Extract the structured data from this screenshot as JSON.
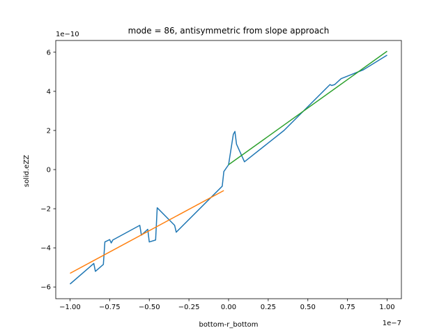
{
  "chart_data": {
    "type": "line",
    "title": "mode = 86, antisymmetric from slope approach",
    "xlabel": "bottom-r_bottom",
    "ylabel": "solid.eZZ",
    "x_offset_label": "1e−7",
    "y_offset_label": "1e−10",
    "x_scale": 1e-07,
    "y_scale": 1e-10,
    "xlim": [
      -1.09,
      1.09
    ],
    "ylim": [
      -6.6,
      6.6
    ],
    "x_ticks": [
      -1.0,
      -0.75,
      -0.5,
      -0.25,
      0.0,
      0.25,
      0.5,
      0.75,
      1.0
    ],
    "x_tick_labels": [
      "−1.00",
      "−0.75",
      "−0.50",
      "−0.25",
      "0.00",
      "0.25",
      "0.50",
      "0.75",
      "1.00"
    ],
    "y_ticks": [
      -6,
      -4,
      -2,
      0,
      2,
      4,
      6
    ],
    "y_tick_labels": [
      "−6",
      "−4",
      "−2",
      "0",
      "2",
      "4",
      "6"
    ],
    "grid": false,
    "series": [
      {
        "color": "#1f77b4",
        "x": [
          -1.0,
          -0.85,
          -0.84,
          -0.79,
          -0.78,
          -0.75,
          -0.74,
          -0.73,
          -0.56,
          -0.55,
          -0.51,
          -0.5,
          -0.46,
          -0.45,
          -0.34,
          -0.33,
          -0.04,
          -0.03,
          0.0,
          0.03,
          0.04,
          0.05,
          0.1,
          0.35,
          0.64,
          0.65,
          0.67,
          0.71,
          0.85,
          1.0
        ],
        "y": [
          -5.85,
          -4.8,
          -5.2,
          -4.85,
          -3.7,
          -3.58,
          -3.75,
          -3.6,
          -2.85,
          -3.35,
          -3.05,
          -3.7,
          -3.6,
          -1.95,
          -2.85,
          -3.2,
          -0.85,
          -0.1,
          0.25,
          1.8,
          1.95,
          1.3,
          0.4,
          2.0,
          4.35,
          4.3,
          4.35,
          4.65,
          5.1,
          5.85
        ]
      },
      {
        "color": "#ff7f0e",
        "x": [
          -1.0,
          -0.03
        ],
        "y": [
          -5.3,
          -1.07
        ]
      },
      {
        "color": "#2ca02c",
        "x": [
          0.0,
          1.0
        ],
        "y": [
          0.25,
          6.05
        ]
      }
    ]
  }
}
